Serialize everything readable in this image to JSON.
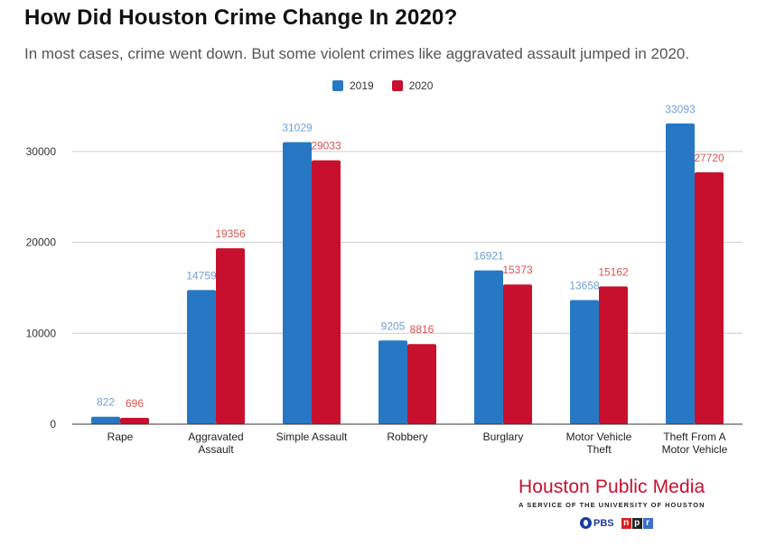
{
  "title": "How Did Houston Crime Change In 2020?",
  "subtitle": "In most cases, crime went down. But some violent crimes like aggravated assault jumped in 2020.",
  "colors": {
    "s2019": "#2778c4",
    "s2020": "#c8102e",
    "label2019": "#6f9fd6",
    "label2020": "#d9534f"
  },
  "brand": {
    "name": "Houston Public Media",
    "tagline": "A SERVICE OF THE UNIVERSITY OF HOUSTON",
    "pbs": "PBS",
    "npr": [
      "n",
      "p",
      "r"
    ]
  },
  "chart_data": {
    "type": "bar",
    "title": "How Did Houston Crime Change In 2020?",
    "categories": [
      [
        "Rape"
      ],
      [
        "Aggravated",
        "Assault"
      ],
      [
        "Simple Assault"
      ],
      [
        "Robbery"
      ],
      [
        "Burglary"
      ],
      [
        "Motor Vehicle",
        "Theft"
      ],
      [
        "Theft From A",
        "Motor Vehicle"
      ]
    ],
    "series": [
      {
        "name": "2019",
        "values": [
          822,
          14759,
          31029,
          9205,
          16921,
          13658,
          33093
        ]
      },
      {
        "name": "2020",
        "values": [
          696,
          19356,
          29033,
          8816,
          15373,
          15162,
          27720
        ]
      }
    ],
    "yticks": [
      0,
      10000,
      20000,
      30000
    ],
    "ylim": [
      0,
      36000
    ],
    "grid": true,
    "legend": "top-center",
    "xlabel": "",
    "ylabel": ""
  }
}
